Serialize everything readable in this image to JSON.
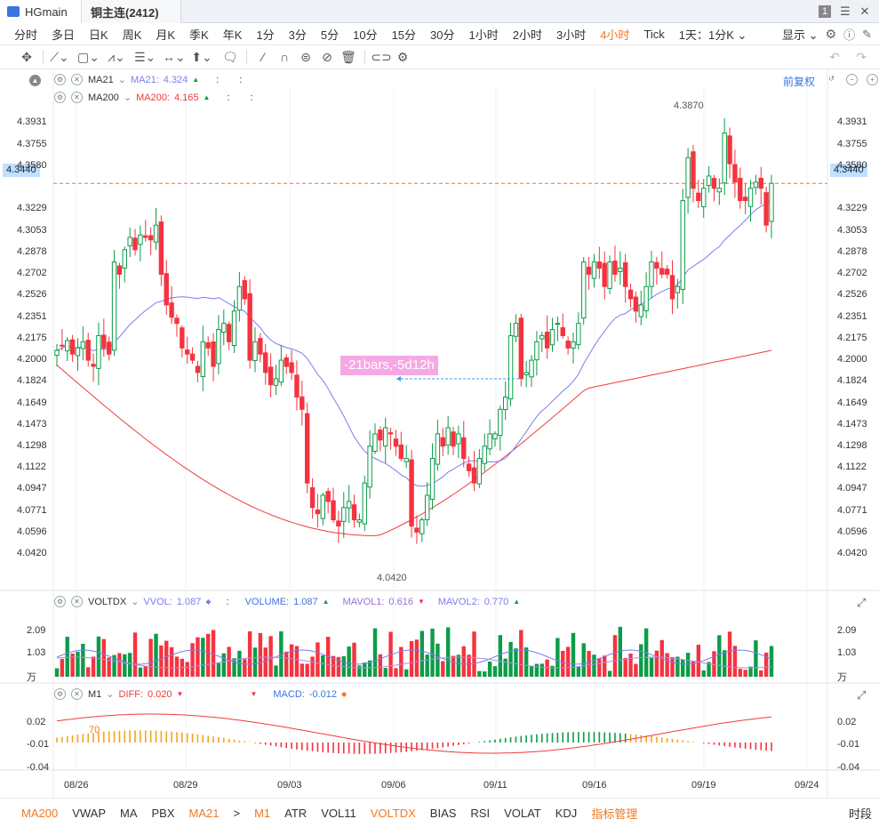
{
  "window": {
    "tab_main": "HGmain",
    "tab_symbol": "铜主连(2412)",
    "btn_num": "1",
    "btn_list": "☰",
    "btn_close": "✕"
  },
  "periods": [
    "分时",
    "多日",
    "日K",
    "周K",
    "月K",
    "季K",
    "年K",
    "1分",
    "3分",
    "5分",
    "10分",
    "15分",
    "30分",
    "1小时",
    "2小时",
    "3小时",
    "4小时",
    "Tick",
    "1天：1分K"
  ],
  "active_period": "4小时",
  "display_label": "显示",
  "main_panel": {
    "legend1": {
      "name": "MA21",
      "label": "MA21:",
      "value": "4.324",
      "arrow": "▲",
      "extra1": ":",
      "extra2": ":"
    },
    "legend2": {
      "name": "MA200",
      "label": "MA200:",
      "value": "4.165",
      "arrow": "▲",
      "extra1": ":",
      "extra2": ":"
    },
    "fuquan": "前复权",
    "yticks": [
      "4.3931",
      "4.3755",
      "4.3580",
      "4.3229",
      "4.3053",
      "4.2878",
      "4.2702",
      "4.2526",
      "4.2351",
      "4.2175",
      "4.2000",
      "4.1824",
      "4.1649",
      "4.1473",
      "4.1298",
      "4.1122",
      "4.0947",
      "4.0771",
      "4.0596",
      "4.0420"
    ],
    "current_price": "4.3440",
    "high_label": "4.3870",
    "low_label": "4.0420",
    "measure_label": "-21bars,-5d12h"
  },
  "vol_panel": {
    "name": "VOLTDX",
    "vvol": "VVOL:",
    "vvol_v": "1.087",
    "vvol_a": "◆",
    "colon": ":",
    "volume": "VOLUME:",
    "volume_v": "1.087",
    "volume_a": "▲",
    "mavol1": "MAVOL1:",
    "mavol1_v": "0.616",
    "mavol1_a": "▼",
    "mavol2": "MAVOL2:",
    "mavol2_v": "0.770",
    "mavol2_a": "▲",
    "yticks": [
      "2.09",
      "1.03",
      "万"
    ]
  },
  "macd_panel": {
    "name": "M1",
    "diff": "DIFF:",
    "diff_v": "0.020",
    "diff_a": "▼",
    "a2": "▼",
    "macd": "MACD:",
    "macd_v": "-0.012",
    "macd_a": "◆",
    "yticks": [
      "0.02",
      "-0.01",
      "-0.04"
    ],
    "yticks_left": [
      "0.02",
      "-0.01",
      "-0.04"
    ],
    "label70": "70"
  },
  "xticks": [
    "08/26",
    "08/29",
    "09/03",
    "09/06",
    "09/11",
    "09/16",
    "09/19",
    "09/24"
  ],
  "bottom": {
    "items": [
      "MA200",
      "VWAP",
      "MA",
      "PBX",
      "MA21",
      ">",
      "M1",
      "ATR",
      "VOL11",
      "VOLTDX",
      "BIAS",
      "RSI",
      "VOLAT",
      "KDJ",
      "指标管理"
    ],
    "orange": [
      "MA200",
      "MA21",
      "M1",
      "VOLTDX",
      "指标管理"
    ],
    "right": "时段"
  },
  "colors": {
    "up": "#f5333f",
    "down": "#0b9c48",
    "ma21": "#7b7ef0",
    "ma200": "#ef3b3b",
    "accent": "#f07820"
  },
  "chart_data": {
    "type": "candlestick",
    "closes": [
      4.208,
      4.212,
      4.216,
      4.205,
      4.21,
      4.215,
      4.2,
      4.195,
      4.22,
      4.21,
      4.205,
      4.28,
      4.27,
      4.29,
      4.3,
      4.29,
      4.302,
      4.3,
      4.298,
      4.31,
      4.27,
      4.245,
      4.235,
      4.23,
      4.21,
      4.205,
      4.2,
      4.19,
      4.215,
      4.21,
      4.195,
      4.225,
      4.23,
      4.215,
      4.24,
      4.26,
      4.25,
      4.2,
      4.215,
      4.205,
      4.19,
      4.18,
      4.185,
      4.2,
      4.195,
      4.19,
      4.17,
      4.16,
      4.1,
      4.08,
      4.075,
      4.09,
      4.085,
      4.07,
      4.065,
      4.08,
      4.085,
      4.07,
      4.07,
      4.1,
      4.13,
      4.14,
      4.135,
      4.145,
      4.14,
      4.13,
      4.12,
      4.12,
      4.065,
      4.06,
      4.07,
      4.09,
      4.12,
      4.14,
      4.13,
      4.145,
      4.13,
      4.14,
      4.12,
      4.11,
      4.1,
      4.12,
      4.13,
      4.14,
      4.14,
      4.16,
      4.17,
      4.22,
      4.23,
      4.185,
      4.19,
      4.2,
      4.215,
      4.22,
      4.21,
      4.225,
      4.23,
      4.22,
      4.21,
      4.215,
      4.23,
      4.28,
      4.27,
      4.28,
      4.275,
      4.26,
      4.28,
      4.27,
      4.275,
      4.26,
      4.25,
      4.24,
      4.245,
      4.26,
      4.28,
      4.275,
      4.27,
      4.27,
      4.25,
      4.26,
      4.33,
      4.365,
      4.34,
      4.33,
      4.34,
      4.35,
      4.34,
      4.34,
      4.385,
      4.36,
      4.345,
      4.33,
      4.33,
      4.34,
      4.345,
      4.34,
      4.31,
      4.344
    ],
    "ma21_color": "#7b7ef0",
    "ma200_color": "#ef3b3b",
    "ylim": [
      4.03,
      4.405
    ]
  }
}
